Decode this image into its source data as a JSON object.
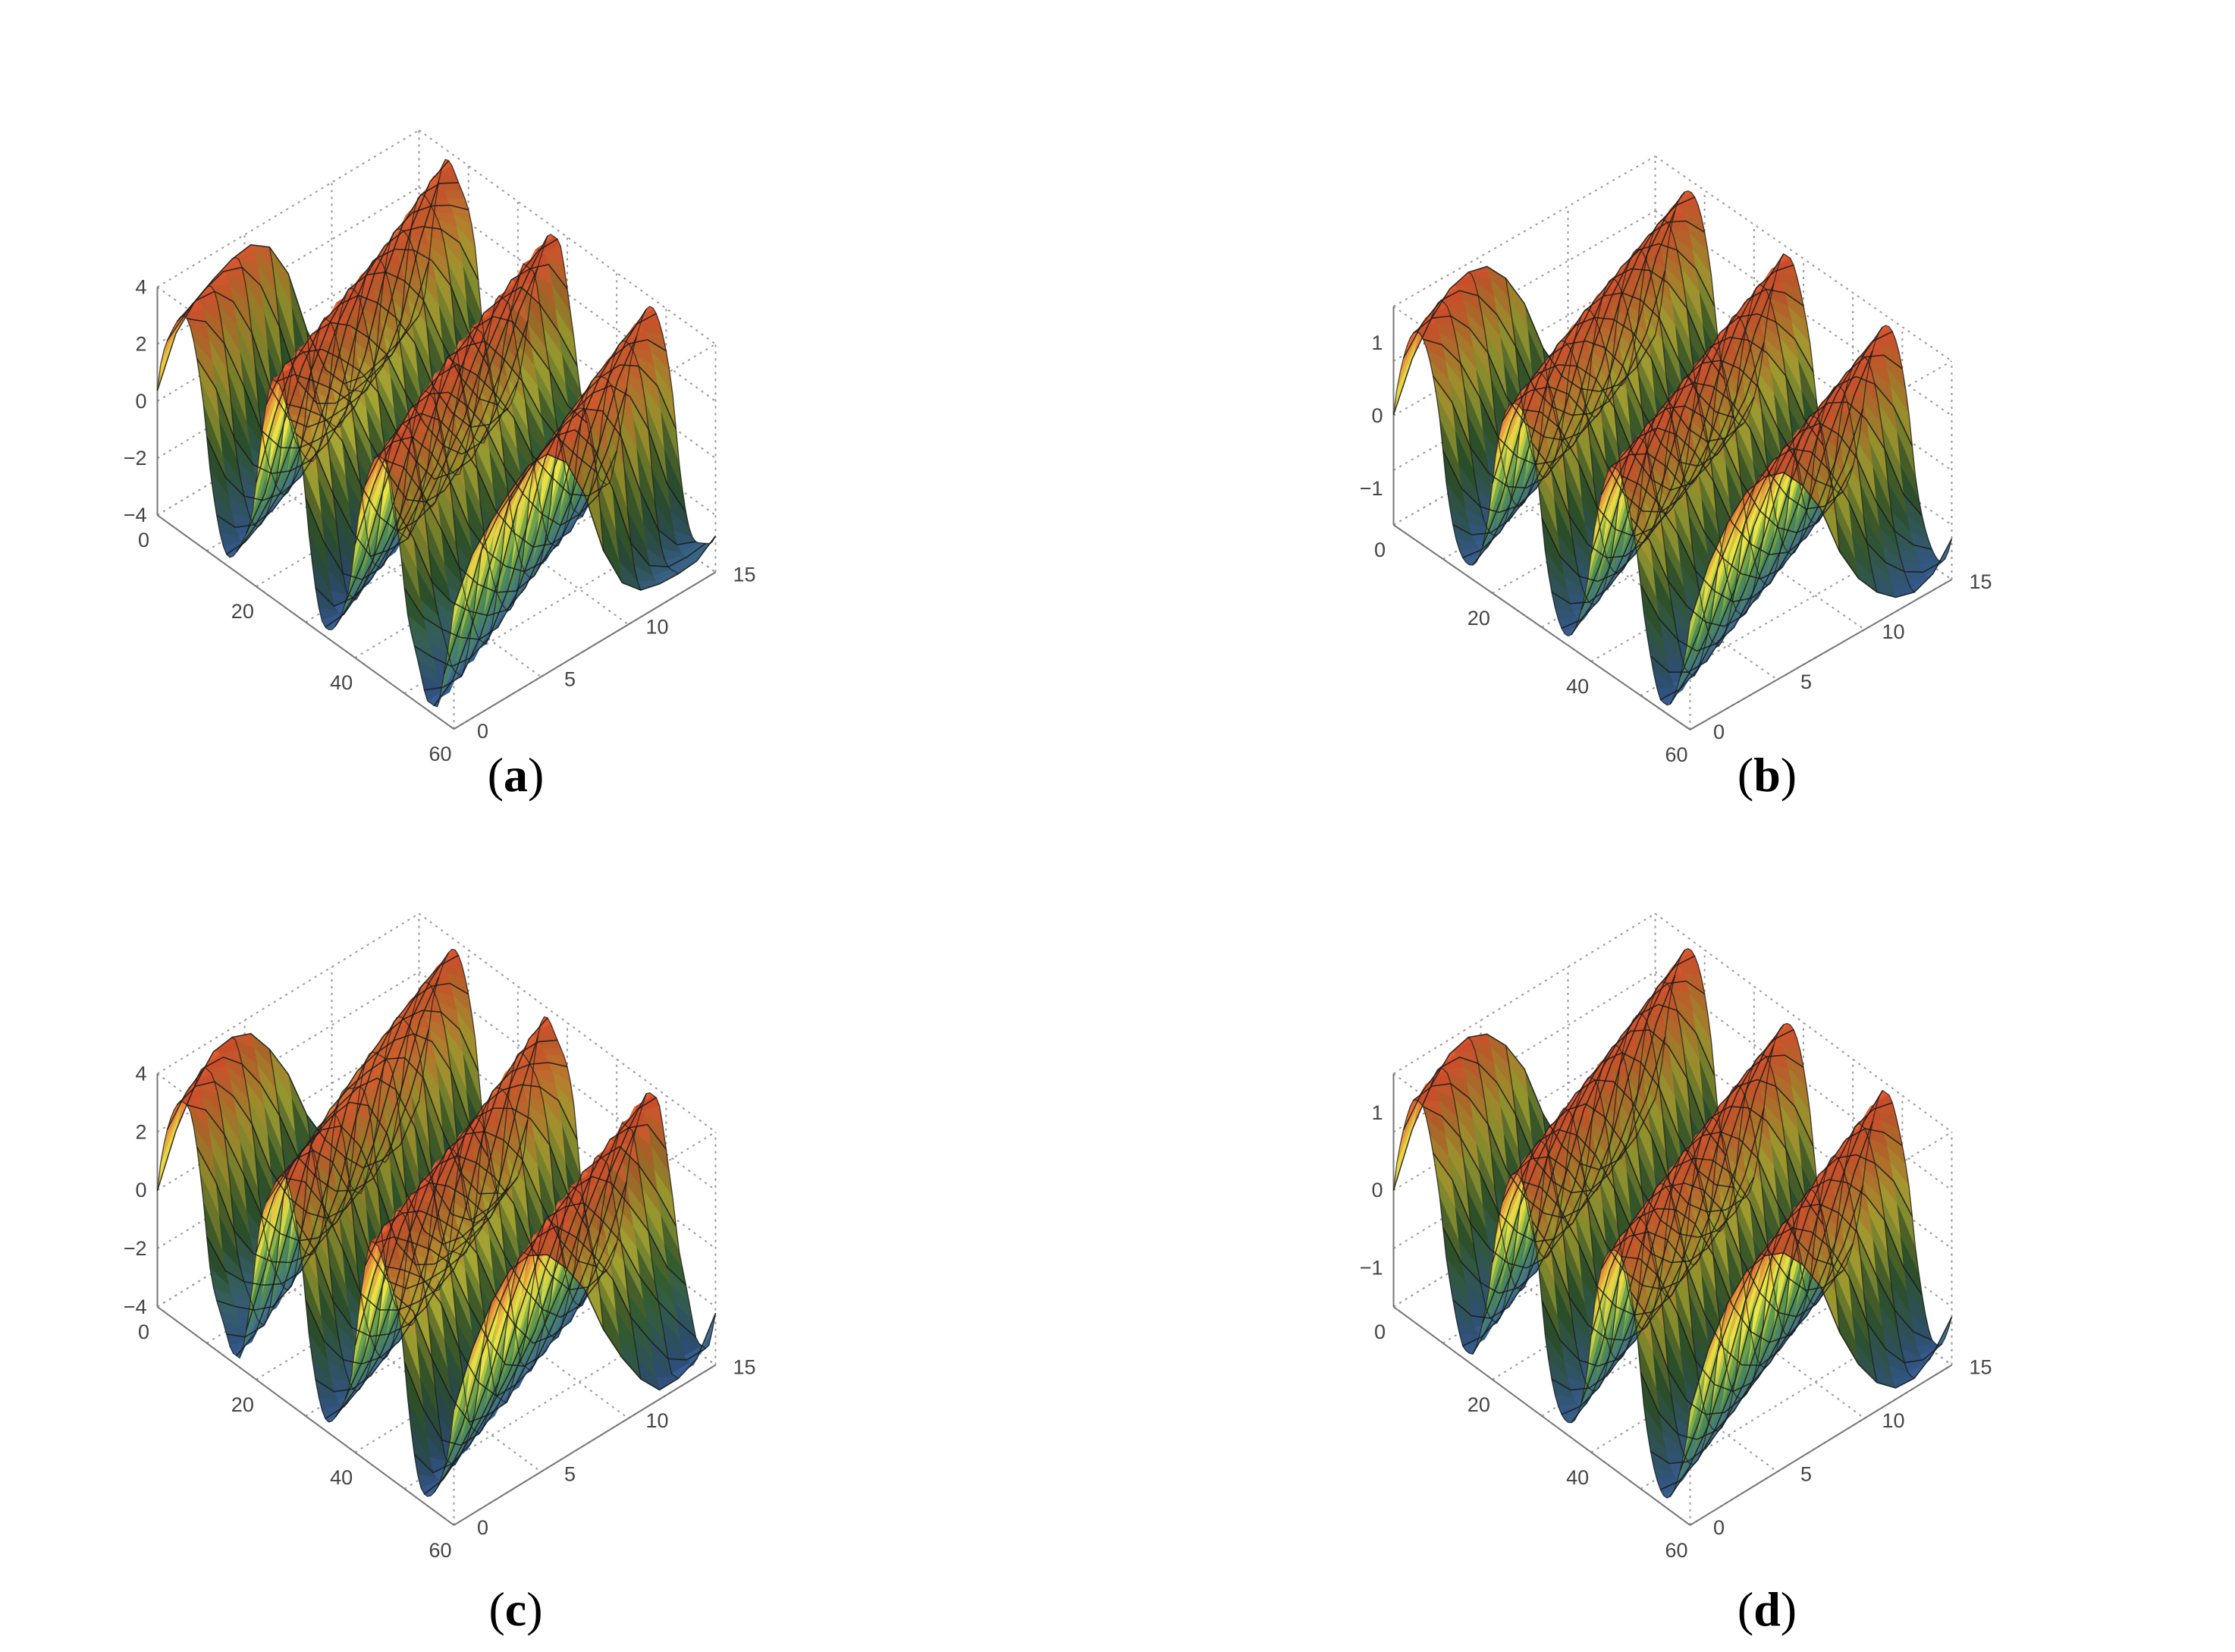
{
  "colors": {
    "low": "#3b63b0",
    "mid_low": "#4f8f4a",
    "mid": "#e9e646",
    "high": "#e0432c",
    "mesh": "#1a1a1a",
    "box": "#9a9a9a"
  },
  "chart_data": [
    {
      "type": "surface3d",
      "caption": "a",
      "x_ticks": [
        "0",
        "20",
        "40",
        "60"
      ],
      "y_ticks": [
        "0",
        "5",
        "10",
        "15"
      ],
      "z_ticks": [
        "4",
        "2",
        "0",
        "-2",
        "-4"
      ],
      "xlim": [
        0,
        60
      ],
      "ylim": [
        0,
        15
      ],
      "zlim": [
        -4,
        4
      ],
      "grid": true,
      "surface": {
        "amplitude": 4.2,
        "crests": 3,
        "wavelength": 20,
        "noise": 0.8
      }
    },
    {
      "type": "surface3d",
      "caption": "b",
      "x_ticks": [
        "0",
        "20",
        "40",
        "60"
      ],
      "y_ticks": [
        "0",
        "5",
        "10",
        "15"
      ],
      "z_ticks": [
        "1",
        "0",
        "-1"
      ],
      "xlim": [
        0,
        60
      ],
      "ylim": [
        0,
        15
      ],
      "zlim": [
        -1.5,
        1.5
      ],
      "grid": true,
      "surface": {
        "amplitude": 1.5,
        "crests": 3,
        "wavelength": 20,
        "noise": 0.1
      }
    },
    {
      "type": "surface3d",
      "caption": "c",
      "x_ticks": [
        "0",
        "20",
        "40",
        "60"
      ],
      "y_ticks": [
        "0",
        "5",
        "10",
        "15"
      ],
      "z_ticks": [
        "4",
        "2",
        "0",
        "-2",
        "-4"
      ],
      "xlim": [
        0,
        60
      ],
      "ylim": [
        0,
        15
      ],
      "zlim": [
        -4,
        4
      ],
      "grid": true,
      "surface": {
        "amplitude": 4.2,
        "crests": 3,
        "wavelength": 20,
        "noise": 0.8
      }
    },
    {
      "type": "surface3d",
      "caption": "d",
      "x_ticks": [
        "0",
        "20",
        "40",
        "60"
      ],
      "y_ticks": [
        "0",
        "5",
        "10",
        "15"
      ],
      "z_ticks": [
        "1",
        "0",
        "-1"
      ],
      "xlim": [
        0,
        60
      ],
      "ylim": [
        0,
        15
      ],
      "zlim": [
        -1.5,
        1.5
      ],
      "grid": true,
      "surface": {
        "amplitude": 1.5,
        "crests": 3,
        "wavelength": 20,
        "noise": 0.1
      }
    }
  ]
}
